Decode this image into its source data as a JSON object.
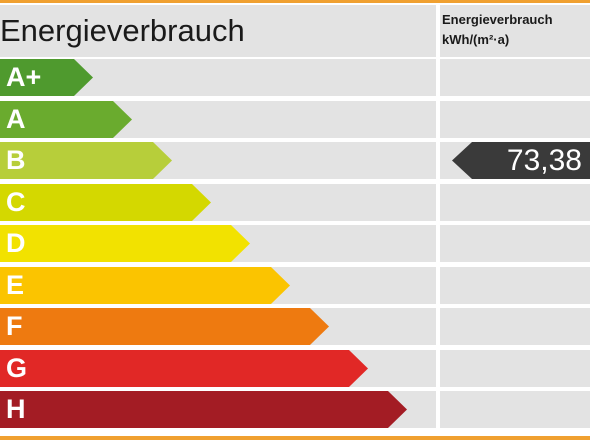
{
  "header": {
    "title": "Energieverbrauch",
    "unit_line1": "Energieverbrauch",
    "unit_line2": "kWh/(m²·a)"
  },
  "accent_color": "#f0a030",
  "classes": [
    {
      "label": "A+",
      "color": "#4f9a2e"
    },
    {
      "label": "A",
      "color": "#6aab2e"
    },
    {
      "label": "B",
      "color": "#b7ce3a"
    },
    {
      "label": "C",
      "color": "#d4d800"
    },
    {
      "label": "D",
      "color": "#f2e200"
    },
    {
      "label": "E",
      "color": "#fbc400"
    },
    {
      "label": "F",
      "color": "#ee7a10"
    },
    {
      "label": "G",
      "color": "#e12826"
    },
    {
      "label": "H",
      "color": "#a31c24"
    }
  ],
  "marker": {
    "value": "73,38",
    "class": "B"
  }
}
